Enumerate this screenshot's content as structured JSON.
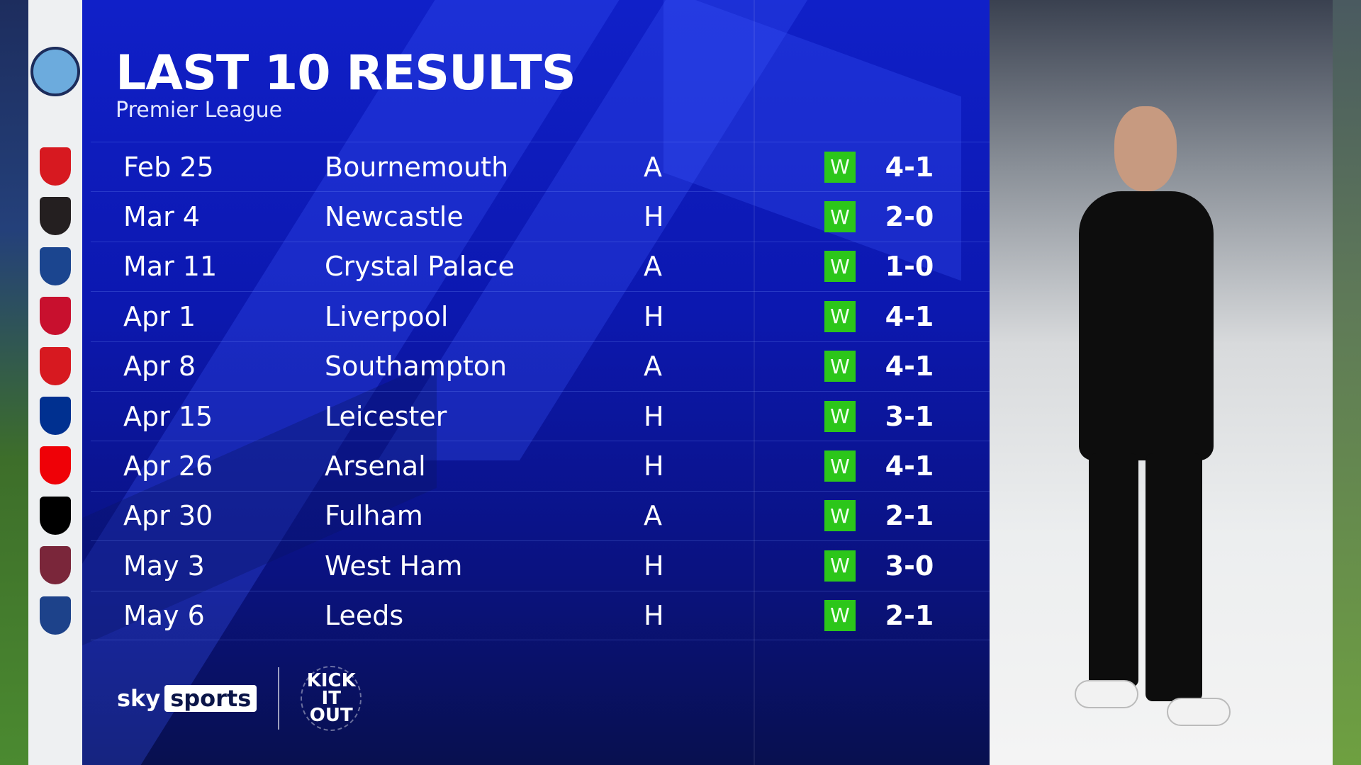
{
  "header": {
    "title": "LAST 10 RESULTS",
    "subtitle": "Premier League",
    "team_crest": "MANCHESTER CITY"
  },
  "colors": {
    "panel": "#0c18b0",
    "win": "#2cc61a",
    "crest_column": "#eef0f2"
  },
  "results": [
    {
      "date": "Feb 25",
      "opponent": "Bournemouth",
      "venue": "A",
      "result": "W",
      "score": "4-1",
      "crest": "AFC",
      "crest_color": "#d71920"
    },
    {
      "date": "Mar 4",
      "opponent": "Newcastle",
      "venue": "H",
      "result": "W",
      "score": "2-0",
      "crest": "NUFC",
      "crest_color": "#241f20"
    },
    {
      "date": "Mar 11",
      "opponent": "Crystal Palace",
      "venue": "A",
      "result": "W",
      "score": "1-0",
      "crest": "CPFC",
      "crest_color": "#1b458f"
    },
    {
      "date": "Apr 1",
      "opponent": "Liverpool",
      "venue": "H",
      "result": "W",
      "score": "4-1",
      "crest": "LFC",
      "crest_color": "#c8102e"
    },
    {
      "date": "Apr 8",
      "opponent": "Southampton",
      "venue": "A",
      "result": "W",
      "score": "4-1",
      "crest": "SFC",
      "crest_color": "#d71920"
    },
    {
      "date": "Apr 15",
      "opponent": "Leicester",
      "venue": "H",
      "result": "W",
      "score": "3-1",
      "crest": "LCFC",
      "crest_color": "#003090"
    },
    {
      "date": "Apr 26",
      "opponent": "Arsenal",
      "venue": "H",
      "result": "W",
      "score": "4-1",
      "crest": "Arsenal",
      "crest_color": "#ef0107"
    },
    {
      "date": "Apr 30",
      "opponent": "Fulham",
      "venue": "A",
      "result": "W",
      "score": "2-1",
      "crest": "FFC",
      "crest_color": "#000000"
    },
    {
      "date": "May 3",
      "opponent": "West Ham",
      "venue": "H",
      "result": "W",
      "score": "3-0",
      "crest": "WEST HAM",
      "crest_color": "#7a263a"
    },
    {
      "date": "May 6",
      "opponent": "Leeds",
      "venue": "H",
      "result": "W",
      "score": "2-1",
      "crest": "LUFC",
      "crest_color": "#1d428a"
    }
  ],
  "footer": {
    "sky": "sky",
    "sports": "sports",
    "kickitout": "KICK IT OUT"
  }
}
